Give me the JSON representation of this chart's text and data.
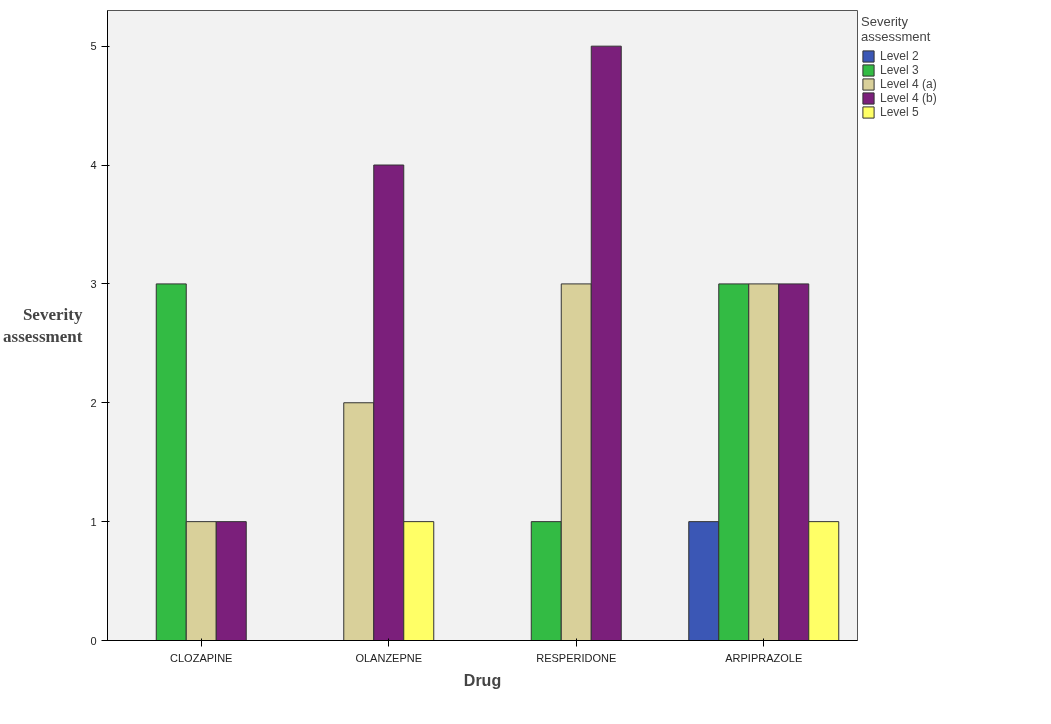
{
  "chart_data": {
    "type": "bar",
    "xlabel": "Drug",
    "ylabel": "Severity assessment",
    "legend_title": "Severity assessment",
    "categories": [
      "CLOZAPINE",
      "OLANZEPNE",
      "RESPERIDONE",
      "ARPIPRAZOLE"
    ],
    "series": [
      {
        "name": "Level 2",
        "color": "#3b57b5",
        "values": [
          null,
          null,
          null,
          1
        ]
      },
      {
        "name": "Level 3",
        "color": "#33bb44",
        "values": [
          3,
          null,
          1,
          3
        ]
      },
      {
        "name": "Level 4 (a)",
        "color": "#d9d09a",
        "values": [
          1,
          2,
          3,
          3
        ]
      },
      {
        "name": "Level 4 (b)",
        "color": "#7b1f7b",
        "values": [
          1,
          4,
          5,
          3
        ]
      },
      {
        "name": "Level 5",
        "color": "#ffff66",
        "values": [
          null,
          1,
          null,
          1
        ]
      }
    ],
    "ylim": [
      0,
      5.3
    ],
    "yticks": [
      0,
      1,
      2,
      3,
      4,
      5
    ],
    "grid": false,
    "legend": "right"
  }
}
